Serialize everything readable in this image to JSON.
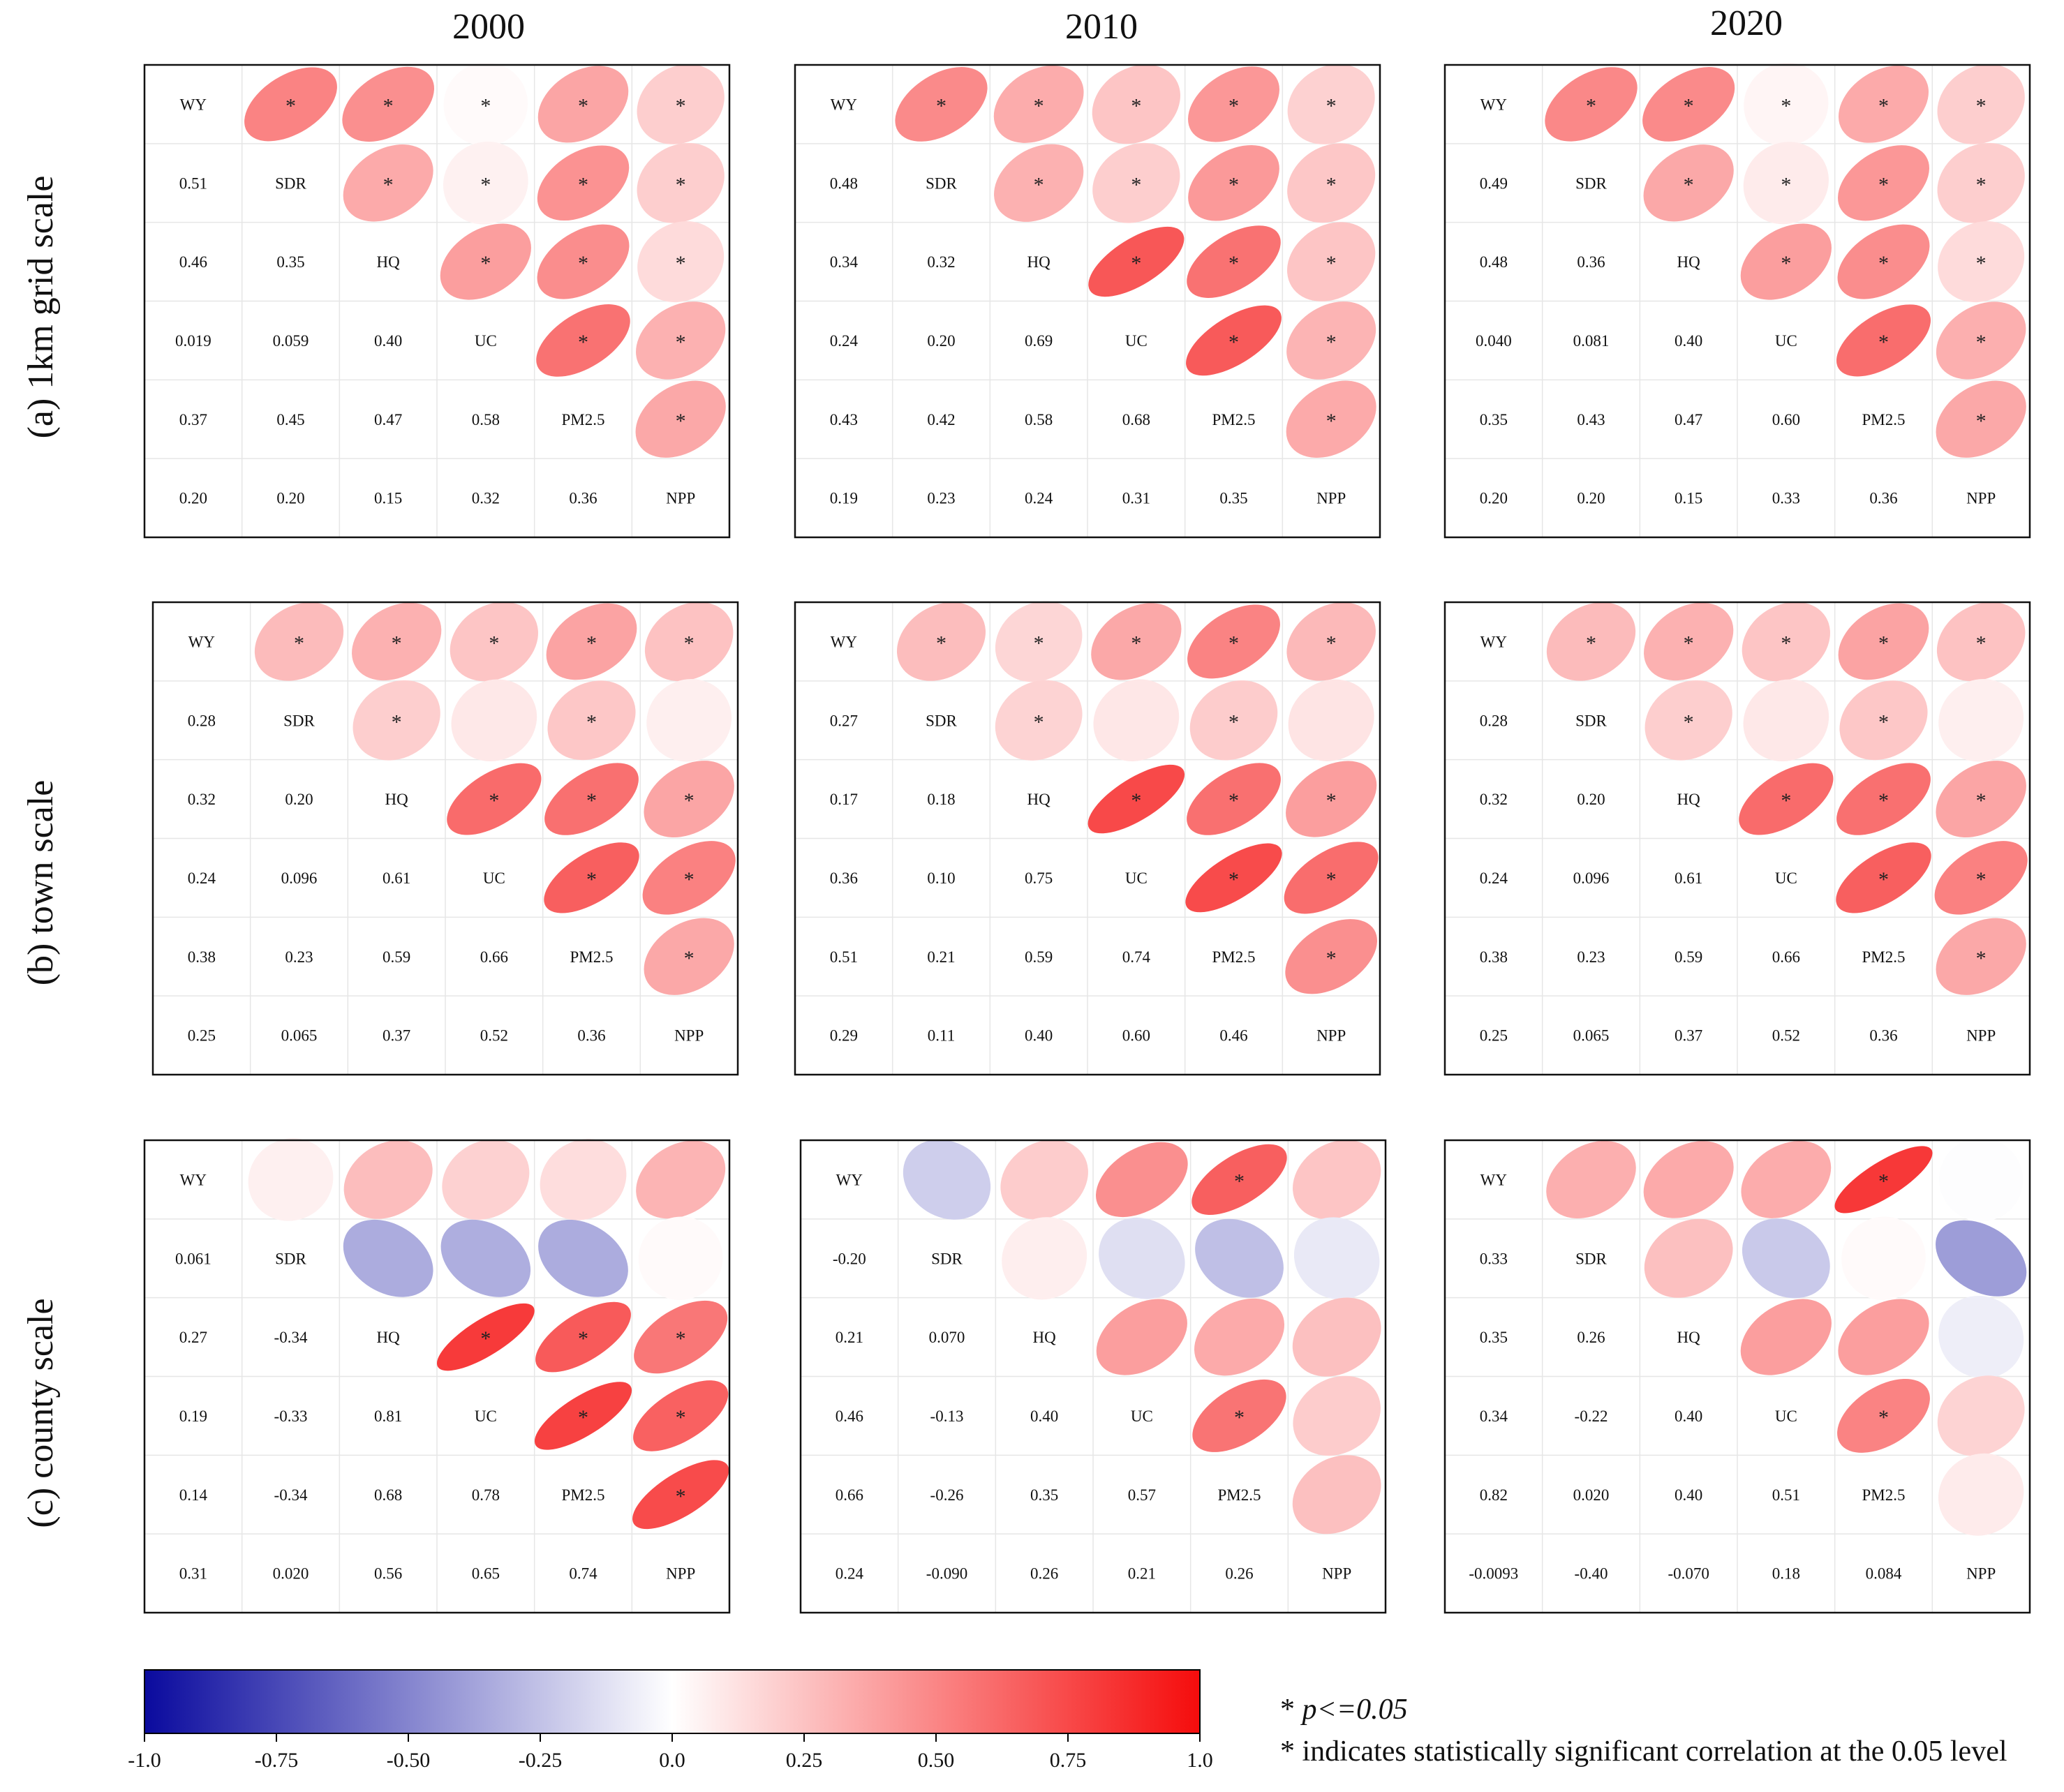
{
  "figure": {
    "variables": [
      "WY",
      "SDR",
      "HQ",
      "UC",
      "PM2.5",
      "NPP"
    ],
    "years": [
      "2000",
      "2010",
      "2020"
    ],
    "scales": [
      "(a) 1km grid scale",
      "(b) town scale",
      "(c) county scale"
    ]
  },
  "chart_data": [
    {
      "type": "correlation-matrix",
      "scale": "(a) 1km grid scale",
      "year": "2000",
      "lower_labels": [
        "0.51",
        "0.46",
        "0.35",
        "0.019",
        "0.059",
        "0.40",
        "0.37",
        "0.45",
        "0.47",
        "0.58",
        "0.20",
        "0.20",
        "0.15",
        "0.32",
        "0.36"
      ],
      "upper": [
        0.51,
        0.46,
        0.019,
        0.37,
        0.2,
        0.35,
        0.059,
        0.45,
        0.2,
        0.4,
        0.47,
        0.15,
        0.58,
        0.32,
        0.36
      ],
      "sig": [
        1,
        1,
        1,
        1,
        1,
        1,
        1,
        1,
        1,
        1,
        1,
        1,
        1,
        1,
        1
      ]
    },
    {
      "type": "correlation-matrix",
      "scale": "(a) 1km grid scale",
      "year": "2010",
      "lower_labels": [
        "0.48",
        "0.34",
        "0.32",
        "0.24",
        "0.20",
        "0.69",
        "0.43",
        "0.42",
        "0.58",
        "0.68",
        "0.19",
        "0.23",
        "0.24",
        "0.31",
        "0.35"
      ],
      "upper": [
        0.48,
        0.34,
        0.24,
        0.43,
        0.19,
        0.32,
        0.2,
        0.42,
        0.23,
        0.69,
        0.58,
        0.24,
        0.68,
        0.31,
        0.35
      ],
      "sig": [
        1,
        1,
        1,
        1,
        1,
        1,
        1,
        1,
        1,
        1,
        1,
        1,
        1,
        1,
        1
      ]
    },
    {
      "type": "correlation-matrix",
      "scale": "(a) 1km grid scale",
      "year": "2020",
      "lower_labels": [
        "0.49",
        "0.48",
        "0.36",
        "0.040",
        "0.081",
        "0.40",
        "0.35",
        "0.43",
        "0.47",
        "0.60",
        "0.20",
        "0.20",
        "0.15",
        "0.33",
        "0.36"
      ],
      "upper": [
        0.49,
        0.48,
        0.04,
        0.35,
        0.2,
        0.36,
        0.081,
        0.43,
        0.2,
        0.4,
        0.47,
        0.15,
        0.6,
        0.33,
        0.36
      ],
      "sig": [
        1,
        1,
        1,
        1,
        1,
        1,
        1,
        1,
        1,
        1,
        1,
        1,
        1,
        1,
        1
      ]
    },
    {
      "type": "correlation-matrix",
      "scale": "(b) town scale",
      "year": "2000",
      "lower_labels": [
        "0.28",
        "0.32",
        "0.20",
        "0.24",
        "0.096",
        "0.61",
        "0.38",
        "0.23",
        "0.59",
        "0.66",
        "0.25",
        "0.065",
        "0.37",
        "0.52",
        "0.36"
      ],
      "upper": [
        0.28,
        0.32,
        0.24,
        0.38,
        0.25,
        0.2,
        0.096,
        0.23,
        0.065,
        0.61,
        0.59,
        0.37,
        0.66,
        0.52,
        0.36
      ],
      "sig": [
        1,
        1,
        1,
        1,
        1,
        1,
        0,
        1,
        0,
        1,
        1,
        1,
        1,
        1,
        1
      ]
    },
    {
      "type": "correlation-matrix",
      "scale": "(b) town scale",
      "year": "2010",
      "lower_labels": [
        "0.27",
        "0.17",
        "0.18",
        "0.36",
        "0.10",
        "0.75",
        "0.51",
        "0.21",
        "0.59",
        "0.74",
        "0.29",
        "0.11",
        "0.40",
        "0.60",
        "0.46"
      ],
      "upper": [
        0.27,
        0.17,
        0.36,
        0.51,
        0.29,
        0.18,
        0.1,
        0.21,
        0.11,
        0.75,
        0.59,
        0.4,
        0.74,
        0.6,
        0.46
      ],
      "sig": [
        1,
        1,
        1,
        1,
        1,
        1,
        0,
        1,
        0,
        1,
        1,
        1,
        1,
        1,
        1
      ]
    },
    {
      "type": "correlation-matrix",
      "scale": "(b) town scale",
      "year": "2020",
      "lower_labels": [
        "0.28",
        "0.32",
        "0.20",
        "0.24",
        "0.096",
        "0.61",
        "0.38",
        "0.23",
        "0.59",
        "0.66",
        "0.25",
        "0.065",
        "0.37",
        "0.52",
        "0.36"
      ],
      "upper": [
        0.28,
        0.32,
        0.24,
        0.38,
        0.25,
        0.2,
        0.096,
        0.23,
        0.065,
        0.61,
        0.59,
        0.37,
        0.66,
        0.52,
        0.36
      ],
      "sig": [
        1,
        1,
        1,
        1,
        1,
        1,
        0,
        1,
        0,
        1,
        1,
        1,
        1,
        1,
        1
      ]
    },
    {
      "type": "correlation-matrix",
      "scale": "(c) county scale",
      "year": "2000",
      "lower_labels": [
        "0.061",
        "0.27",
        "-0.34",
        "0.19",
        "-0.33",
        "0.81",
        "0.14",
        "-0.34",
        "0.68",
        "0.78",
        "0.31",
        "0.020",
        "0.56",
        "0.65",
        "0.74"
      ],
      "upper": [
        0.061,
        0.27,
        0.19,
        0.14,
        0.31,
        -0.34,
        -0.33,
        -0.34,
        0.02,
        0.81,
        0.68,
        0.56,
        0.78,
        0.65,
        0.74
      ],
      "sig": [
        0,
        0,
        0,
        0,
        0,
        0,
        0,
        0,
        0,
        1,
        1,
        1,
        1,
        1,
        1
      ]
    },
    {
      "type": "correlation-matrix",
      "scale": "(c) county scale",
      "year": "2010",
      "lower_labels": [
        "-0.20",
        "0.21",
        "0.070",
        "0.46",
        "-0.13",
        "0.40",
        "0.66",
        "-0.26",
        "0.35",
        "0.57",
        "0.24",
        "-0.090",
        "0.26",
        "0.21",
        "0.26"
      ],
      "upper": [
        -0.2,
        0.21,
        0.46,
        0.66,
        0.24,
        0.07,
        -0.13,
        -0.26,
        -0.09,
        0.4,
        0.35,
        0.26,
        0.57,
        0.21,
        0.26
      ],
      "sig": [
        0,
        0,
        0,
        1,
        0,
        0,
        0,
        0,
        0,
        0,
        0,
        0,
        1,
        0,
        0
      ]
    },
    {
      "type": "correlation-matrix",
      "scale": "(c) county scale",
      "year": "2020",
      "lower_labels": [
        "0.33",
        "0.35",
        "0.26",
        "0.34",
        "-0.22",
        "0.40",
        "0.82",
        "0.020",
        "0.40",
        "0.51",
        "-0.0093",
        "-0.40",
        "-0.070",
        "0.18",
        "0.084"
      ],
      "upper": [
        0.33,
        0.35,
        0.34,
        0.82,
        -0.0093,
        0.26,
        -0.22,
        0.02,
        -0.4,
        0.4,
        0.4,
        -0.07,
        0.51,
        0.18,
        0.084
      ],
      "sig": [
        0,
        0,
        0,
        1,
        0,
        0,
        0,
        0,
        0,
        0,
        0,
        0,
        1,
        0,
        0
      ]
    }
  ],
  "colorbar": {
    "ticks": [
      "-1.0",
      "-0.75",
      "-0.50",
      "-0.25",
      "0.0",
      "0.25",
      "0.50",
      "0.75",
      "1.0"
    ],
    "tick_values": [
      -1.0,
      -0.75,
      -0.5,
      -0.25,
      0.0,
      0.25,
      0.5,
      0.75,
      1.0
    ],
    "colors": {
      "negative": "#0a0a9e",
      "zero": "#ffffff",
      "positive": "#f50c0c"
    }
  },
  "legend": {
    "star_symbol": "* ",
    "p_text": "p<=0.05",
    "note": "* indicates statistically significant correlation at the 0.05 level"
  }
}
